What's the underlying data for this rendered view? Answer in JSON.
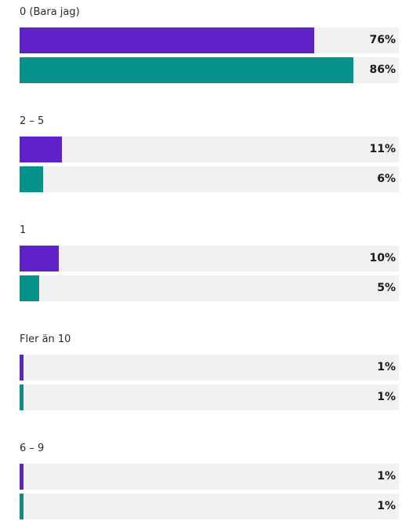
{
  "chart_data": {
    "type": "bar",
    "orientation": "horizontal",
    "value_suffix": "%",
    "xlim": [
      0,
      86
    ],
    "categories": [
      "0 (Bara jag)",
      "2 – 5",
      "1",
      "Fler än 10",
      "6 – 9"
    ],
    "series": [
      {
        "color": "#5f22c8",
        "values": [
          76,
          11,
          10,
          1,
          1
        ]
      },
      {
        "color": "#06918a",
        "values": [
          86,
          6,
          5,
          1,
          1
        ]
      }
    ],
    "value_labels": [
      [
        "76%",
        "86%"
      ],
      [
        "11%",
        "6%"
      ],
      [
        "10%",
        "5%"
      ],
      [
        "1%",
        "1%"
      ],
      [
        "1%",
        "1%"
      ]
    ],
    "track_color": "#f1f1f1",
    "grid": false,
    "legend": "none"
  }
}
